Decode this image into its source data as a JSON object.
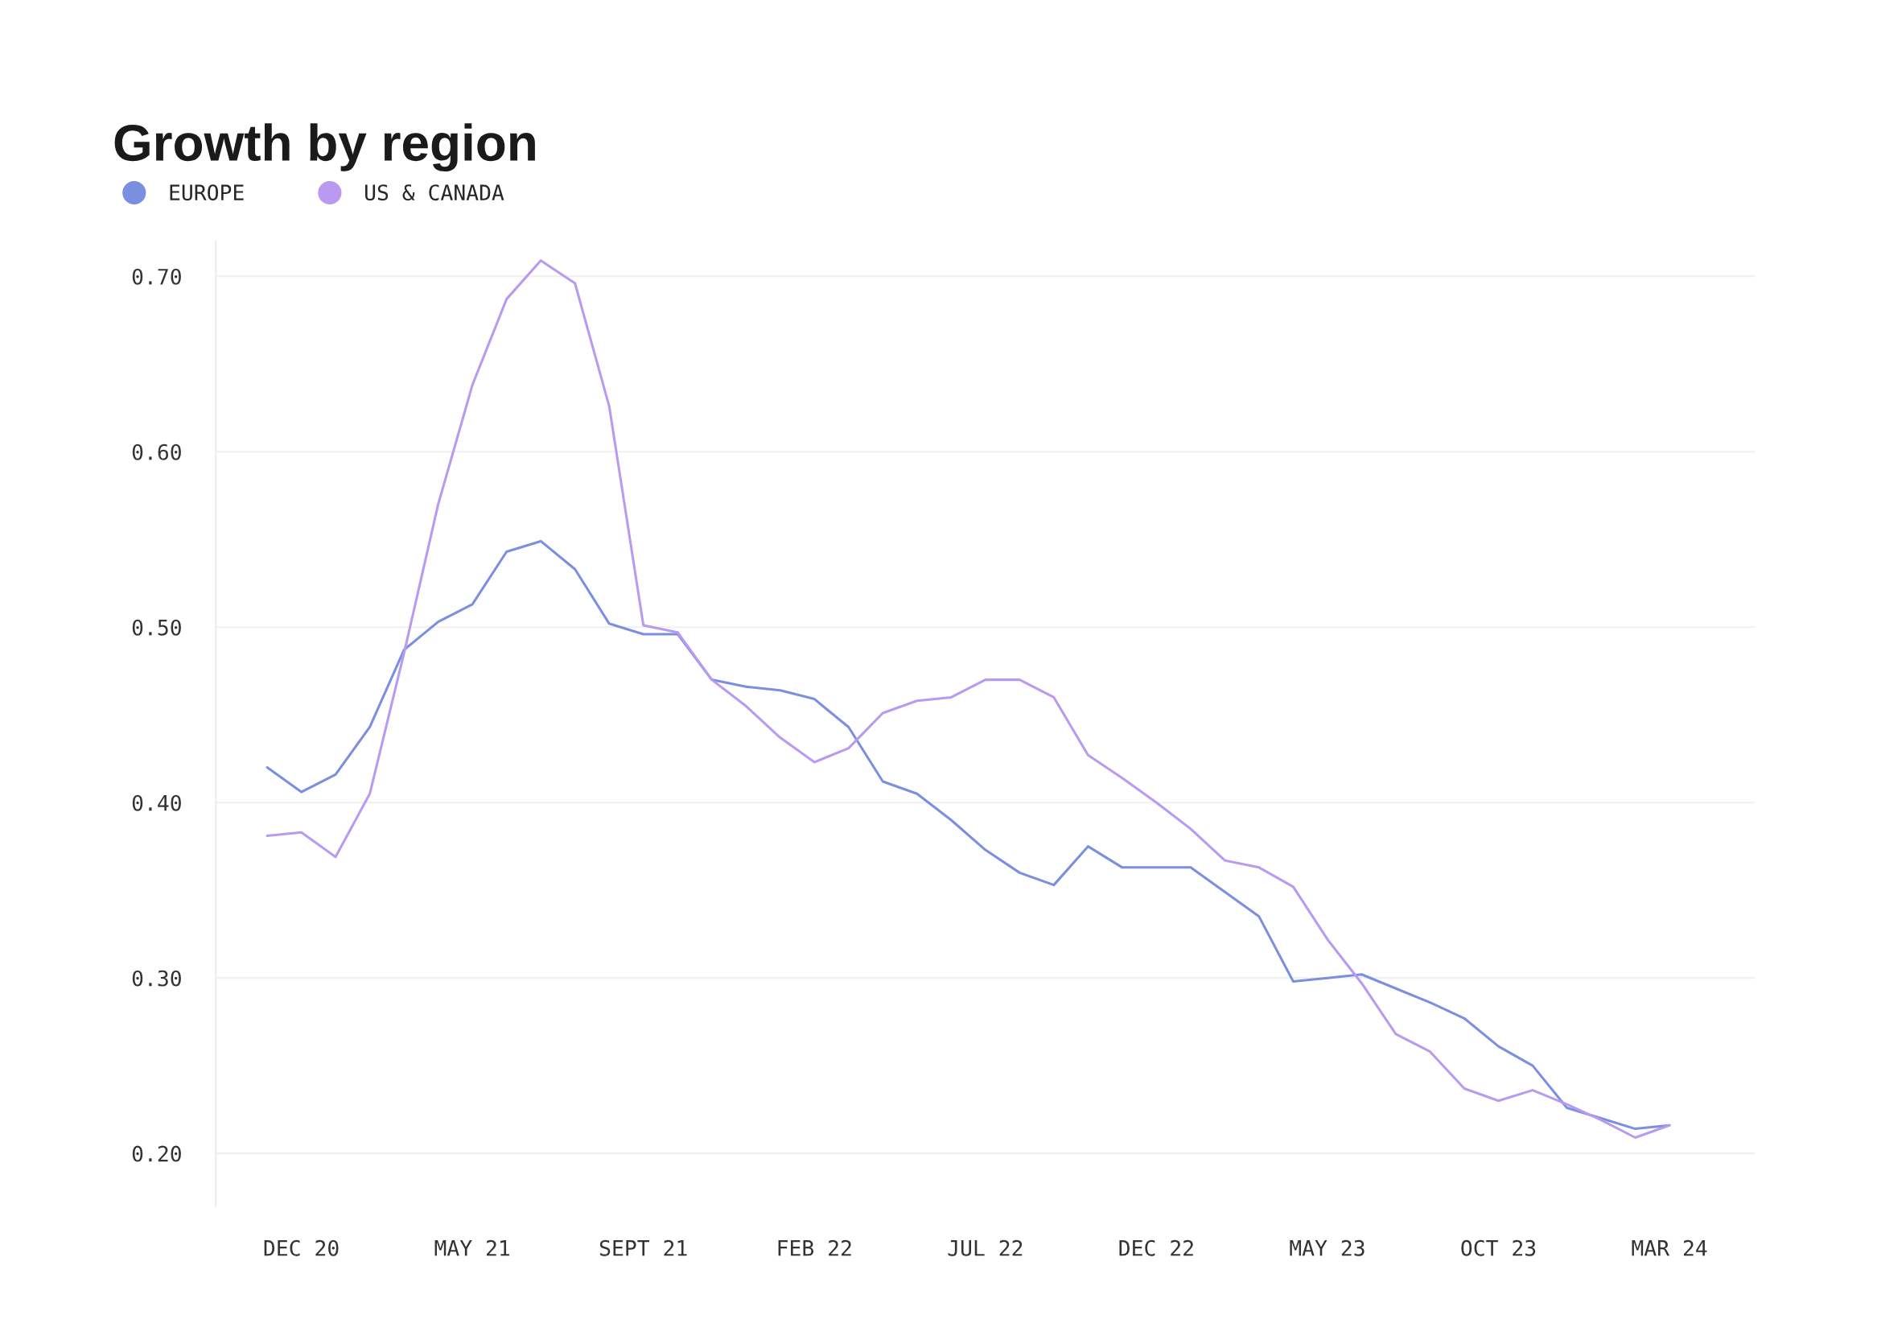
{
  "chart_data": {
    "type": "line",
    "title": "Growth by region",
    "categories": [
      null,
      "DEC 20",
      null,
      null,
      null,
      null,
      "MAY 21",
      null,
      null,
      null,
      null,
      "SEPT 21",
      null,
      null,
      null,
      null,
      "FEB 22",
      null,
      null,
      null,
      null,
      "JUL 22",
      null,
      null,
      null,
      null,
      "DEC 22",
      null,
      null,
      null,
      null,
      "MAY 23",
      null,
      null,
      null,
      null,
      "OCT 23",
      null,
      null,
      null,
      null,
      "MAR 24"
    ],
    "series": [
      {
        "name": "EUROPE",
        "color": "#7b8fe0",
        "values": [
          0.42,
          0.406,
          0.416,
          0.443,
          0.487,
          0.503,
          0.513,
          0.543,
          0.549,
          0.533,
          0.502,
          0.496,
          0.496,
          0.47,
          0.466,
          0.464,
          0.459,
          0.443,
          0.412,
          0.405,
          0.39,
          0.373,
          0.36,
          0.353,
          0.375,
          0.363,
          0.363,
          0.363,
          0.349,
          0.335,
          0.298,
          0.3,
          0.302,
          0.294,
          0.286,
          0.277,
          0.261,
          0.25,
          0.226,
          0.22,
          0.214,
          0.216
        ]
      },
      {
        "name": "US & CANADA",
        "color": "#b99af0",
        "values": [
          0.381,
          0.383,
          0.369,
          0.405,
          0.485,
          0.57,
          0.638,
          0.687,
          0.709,
          0.696,
          0.626,
          0.501,
          0.497,
          0.47,
          0.455,
          0.437,
          0.423,
          0.431,
          0.451,
          0.458,
          0.46,
          0.47,
          0.47,
          0.46,
          0.427,
          0.414,
          0.4,
          0.385,
          0.367,
          0.363,
          0.352,
          0.322,
          0.297,
          0.268,
          0.258,
          0.237,
          0.23,
          0.236,
          0.228,
          0.219,
          0.209,
          0.216
        ]
      }
    ],
    "ylim": [
      0.17,
      0.72
    ],
    "yticks": [
      {
        "value": 0.2,
        "label": "0.20"
      },
      {
        "value": 0.3,
        "label": "0.30"
      },
      {
        "value": 0.4,
        "label": "0.40"
      },
      {
        "value": 0.5,
        "label": "0.50"
      },
      {
        "value": 0.6,
        "label": "0.60"
      },
      {
        "value": 0.7,
        "label": "0.70"
      }
    ],
    "grid": "y",
    "legend": "top left",
    "marker": "none",
    "line_style": "solid"
  }
}
